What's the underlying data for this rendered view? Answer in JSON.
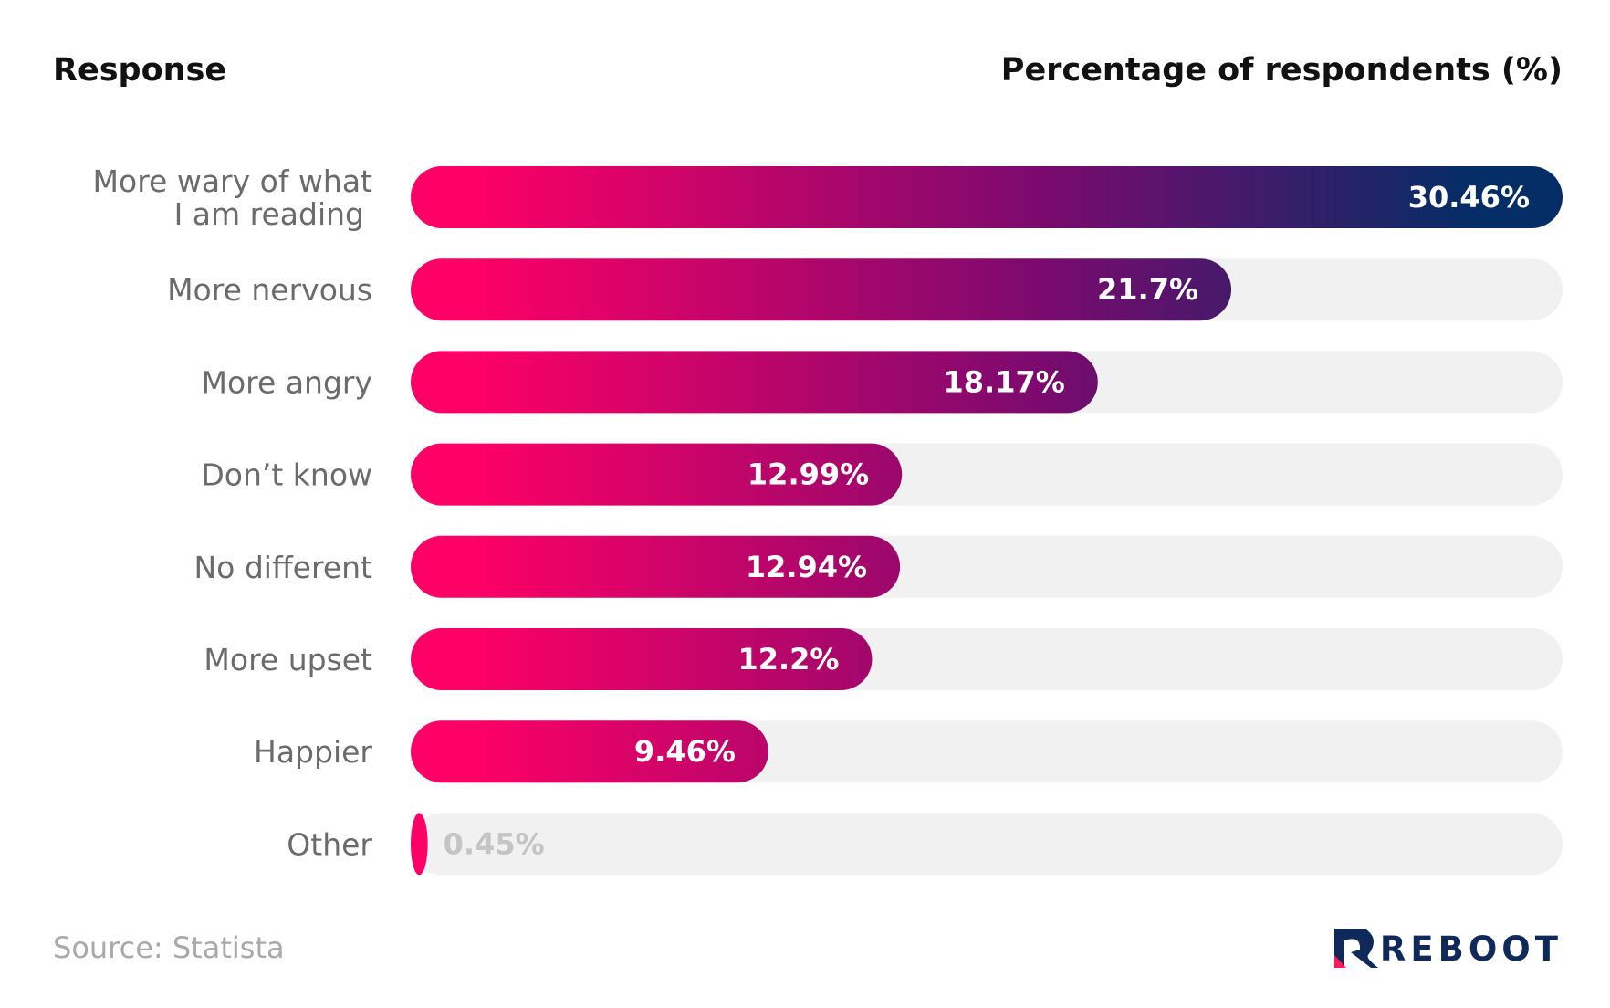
{
  "chart_data": {
    "type": "bar",
    "orientation": "horizontal",
    "xlabel": "Response",
    "ylabel": "Percentage of respondents (%)",
    "categories": [
      [
        "More wary of what",
        "I am reading"
      ],
      [
        "More nervous"
      ],
      [
        "More angry"
      ],
      [
        "Don’t know"
      ],
      [
        "No different"
      ],
      [
        "More upset"
      ],
      [
        "Happier"
      ],
      [
        "Other"
      ]
    ],
    "values": [
      30.46,
      21.7,
      18.17,
      12.99,
      12.94,
      12.2,
      9.46,
      0.45
    ],
    "value_labels": [
      "30.46%",
      "21.7%",
      "18.17%",
      "12.99%",
      "12.94%",
      "12.2%",
      "9.46%",
      "0.45%"
    ],
    "xlim": [
      0,
      30.46
    ],
    "grid": false,
    "legend": "none"
  },
  "footer": {
    "source": "Source: Statista",
    "brand": "REBOOT"
  },
  "colors": {
    "gradient_start": "#ff0066",
    "gradient_mid": "#7a0a6e",
    "gradient_end": "#052d66",
    "track": "#f1f1f1",
    "header_text": "#111111",
    "category_text": "#6b6b6b",
    "value_text": "#ffffff",
    "value_text_outside": "#c4c4c4",
    "source_text": "#a9a9a9",
    "brand_navy": "#0f2a5a",
    "brand_pink": "#ff1a5c"
  }
}
